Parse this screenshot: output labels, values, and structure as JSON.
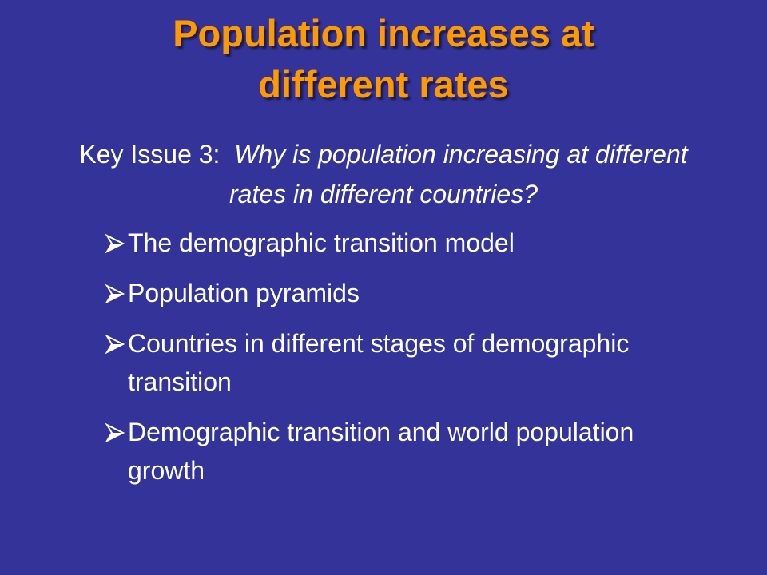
{
  "title": "Population increases at different rates",
  "key_issue": {
    "label": "Key Issue 3:",
    "question": "Why is population increasing at different rates in different countries?"
  },
  "bullets": [
    "The demographic transition model",
    "Population pyramids",
    "Countries in different stages of demographic transition",
    "Demographic transition and world population growth"
  ]
}
